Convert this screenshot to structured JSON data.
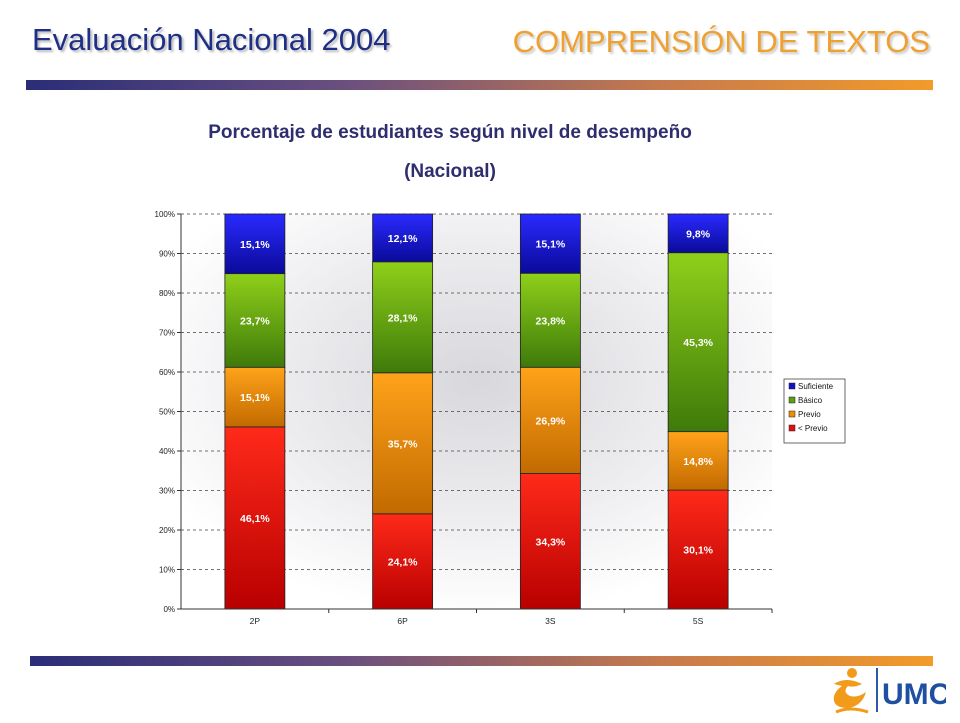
{
  "header": {
    "title": "Evaluación Nacional 2004",
    "subject": "COMPRENSIÓN DE TEXTOS"
  },
  "logo": {
    "text": "UMC"
  },
  "chart_data": {
    "type": "bar",
    "stacked": true,
    "title": "Porcentaje de estudiantes según nivel de desempeño",
    "subtitle": "(Nacional)",
    "categories": [
      "2P",
      "6P",
      "3S",
      "5S"
    ],
    "ylim": [
      0,
      100
    ],
    "yticks": [
      "0%",
      "10%",
      "20%",
      "30%",
      "40%",
      "50%",
      "60%",
      "70%",
      "80%",
      "90%",
      "100%"
    ],
    "grid": true,
    "legend_position": "right",
    "series": [
      {
        "name": "< Previo",
        "color": "#e01010",
        "values": [
          46.1,
          24.1,
          34.3,
          30.1
        ],
        "labels": [
          "46,1%",
          "24,1%",
          "34,3%",
          "30,1%"
        ]
      },
      {
        "name": "Previo",
        "color": "#f08c00",
        "values": [
          15.1,
          35.7,
          26.9,
          14.8
        ],
        "labels": [
          "15,1%",
          "35,7%",
          "26,9%",
          "14,8%"
        ]
      },
      {
        "name": "Básico",
        "color": "#5aa010",
        "values": [
          23.7,
          28.1,
          23.8,
          45.3
        ],
        "labels": [
          "23,7%",
          "28,1%",
          "23,8%",
          "45,3%"
        ]
      },
      {
        "name": "Suficiente",
        "color": "#1010c8",
        "values": [
          15.1,
          12.1,
          15.1,
          9.8
        ],
        "labels": [
          "15,1%",
          "12,1%",
          "15,1%",
          "9,8%"
        ]
      }
    ],
    "legend_order": [
      "Suficiente",
      "Básico",
      "Previo",
      "< Previo"
    ]
  }
}
